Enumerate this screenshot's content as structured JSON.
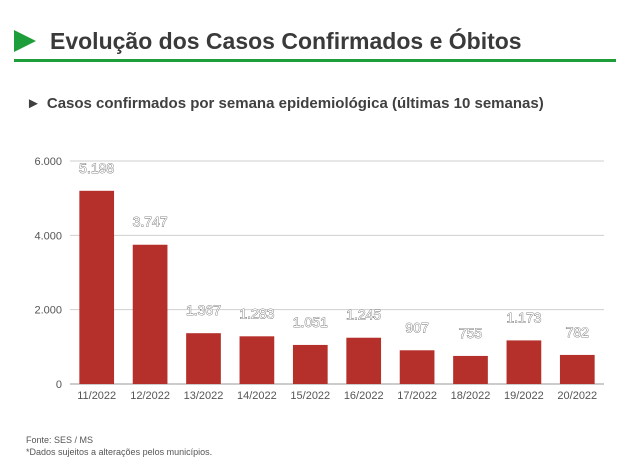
{
  "header": {
    "title": "Evolução dos Casos Confirmados e Óbitos",
    "accent_color": "#1e9e3a",
    "arrow_icon": "play-arrow-icon"
  },
  "subtitle": {
    "marker": "►",
    "text": "Casos confirmados por semana epidemiológica (últimas 10 semanas)"
  },
  "chart_data": {
    "type": "bar",
    "categories": [
      "11/2022",
      "12/2022",
      "13/2022",
      "14/2022",
      "15/2022",
      "16/2022",
      "17/2022",
      "18/2022",
      "19/2022",
      "20/2022"
    ],
    "values": [
      5198,
      3747,
      1367,
      1283,
      1051,
      1245,
      907,
      755,
      1173,
      782
    ],
    "value_labels": [
      "5.198",
      "3.747",
      "1.367",
      "1.283",
      "1.051",
      "1.245",
      "907",
      "755",
      "1.173",
      "782"
    ],
    "ylim": [
      0,
      6000
    ],
    "yticks": [
      0,
      2000,
      4000,
      6000
    ],
    "ytick_labels": [
      "0",
      "2.000",
      "4.000",
      "6.000"
    ],
    "grid": true,
    "bar_color": "#b5302a"
  },
  "footer": {
    "source": "Fonte: SES / MS",
    "note": "*Dados sujeitos a alterações pelos municípios."
  }
}
